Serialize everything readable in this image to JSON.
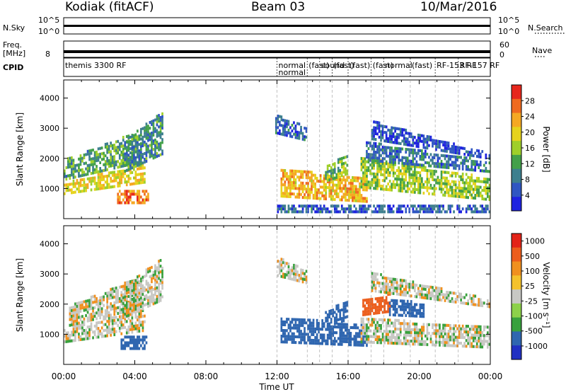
{
  "header": {
    "station": "Kodiak (fitACF)",
    "beam": "Beam 03",
    "date": "10/Mar/2016"
  },
  "strips": {
    "nsky_label": "N.Sky",
    "nsearch_label": "N.Search",
    "freq_label_1": "Freq.",
    "freq_label_2": "[MHz]",
    "nave_label": "Nave",
    "cpid_label": "CPID",
    "nsky_ticks": [
      "10^5",
      "10^0"
    ],
    "nsearch_ticks": [
      "10^5",
      "10^0"
    ],
    "freq_ticks": [
      "8"
    ],
    "nave_ticks": [
      "60",
      "0"
    ],
    "cpid_segments": [
      {
        "start": 0.0,
        "label": "themis 3300 RF"
      },
      {
        "start": 12.0,
        "label": "normal"
      },
      {
        "start": 13.7,
        "label": "(fast)"
      },
      {
        "start": 14.4,
        "label": "sound"
      },
      {
        "start": 15.1,
        "label": "(fast)"
      },
      {
        "start": 16.0,
        "label": "(fast)"
      },
      {
        "start": 17.3,
        "label": "(fast)"
      },
      {
        "start": 18.0,
        "label": "normal"
      },
      {
        "start": 19.5,
        "label": "(fast)"
      },
      {
        "start": 20.9,
        "label": "RF-153 RF"
      },
      {
        "start": 22.2,
        "label": "RF-157 RF"
      }
    ],
    "cpid_second_row": [
      "normal"
    ]
  },
  "colors": {
    "power": [
      "#1e22e0",
      "#2f56c2",
      "#3d7f8e",
      "#43a04a",
      "#9fcf2a",
      "#e6d31d",
      "#f5a823",
      "#ef6a1f",
      "#e7271d"
    ],
    "velocity": [
      "#2130c2",
      "#2f66b0",
      "#38a13d",
      "#8dd14a",
      "#c8c8c4",
      "#f4c22c",
      "#f0901f",
      "#ec5d1c",
      "#e32318"
    ]
  },
  "chart_data": [
    {
      "type": "heatmap",
      "panel": "power",
      "ylabel": "Slant Range [km]",
      "xlabel": "",
      "xlim": [
        0,
        24
      ],
      "ylim": [
        0,
        4600
      ],
      "yticks": [
        "1000",
        "2000",
        "3000",
        "4000"
      ],
      "colorbar": {
        "label": "Power [dB]",
        "ticks": [
          "28",
          "24",
          "20",
          "16",
          "12",
          "8",
          "4"
        ],
        "range": [
          0,
          32
        ]
      },
      "bands": [
        {
          "t0": 0.0,
          "t1": 4.6,
          "r0": 780,
          "r1": 1150,
          "r1end": 1800,
          "value": 20
        },
        {
          "t0": 0.0,
          "t1": 4.4,
          "r0": 1250,
          "r1": 1900,
          "r1end": 2900,
          "value": 12
        },
        {
          "t0": 3.3,
          "t1": 5.5,
          "r0": 1500,
          "r1": 2500,
          "r1end": 3500,
          "value": 10
        },
        {
          "t0": 3.0,
          "t1": 4.7,
          "r0": 480,
          "r1": 900,
          "r1end": 900,
          "value": 26
        },
        {
          "t0": 11.9,
          "t1": 13.6,
          "r0": 2800,
          "r1": 3400,
          "r1end": 3000,
          "value": 6
        },
        {
          "t0": 12.2,
          "t1": 17.1,
          "r0": 700,
          "r1": 1600,
          "r1end": 1300,
          "value": 22
        },
        {
          "t0": 14.7,
          "t1": 15.9,
          "r0": 1200,
          "r1": 1700,
          "r1end": 2100,
          "value": 14
        },
        {
          "t0": 16.7,
          "t1": 24.0,
          "r0": 1000,
          "r1": 2000,
          "r1end": 1300,
          "value": 16
        },
        {
          "t0": 17.0,
          "t1": 24.0,
          "r0": 1900,
          "r1": 2500,
          "r1end": 1850,
          "value": 8
        },
        {
          "t0": 17.3,
          "t1": 24.0,
          "r0": 2600,
          "r1": 3200,
          "r1end": 2100,
          "value": 5
        },
        {
          "t0": 12.0,
          "t1": 24.0,
          "r0": 180,
          "r1": 420,
          "r1end": 420,
          "value": 6
        }
      ]
    },
    {
      "type": "heatmap",
      "panel": "velocity",
      "ylabel": "Slant Range [km]",
      "xlabel": "Time UT",
      "xlim": [
        0,
        24
      ],
      "ylim": [
        0,
        4600
      ],
      "yticks": [
        "1000",
        "2000",
        "3000",
        "4000"
      ],
      "xticks": [
        "00:00",
        "04:00",
        "08:00",
        "12:00",
        "16:00",
        "20:00",
        "00:00"
      ],
      "colorbar": {
        "label": "Velocity [m s⁻¹]",
        "ticks": [
          "1000",
          "500",
          "100",
          "25",
          "-25",
          "-100",
          "-500",
          "-1000"
        ],
        "range": [
          -1000,
          1000
        ]
      },
      "bands": [
        {
          "t0": 0.0,
          "t1": 4.6,
          "r0": 700,
          "r1": 1150,
          "r1end": 1800,
          "value": 0
        },
        {
          "t0": 0.3,
          "t1": 4.4,
          "r0": 1250,
          "r1": 1900,
          "r1end": 2900,
          "value": 0
        },
        {
          "t0": 3.3,
          "t1": 5.5,
          "r0": 1500,
          "r1": 2500,
          "r1end": 3500,
          "value": 0
        },
        {
          "t0": 3.2,
          "t1": 4.6,
          "r0": 480,
          "r1": 900,
          "r1end": 900,
          "value": -300
        },
        {
          "t0": 12.0,
          "t1": 13.6,
          "r0": 2900,
          "r1": 3500,
          "r1end": 3100,
          "value": 0
        },
        {
          "t0": 12.2,
          "t1": 17.1,
          "r0": 700,
          "r1": 1500,
          "r1end": 1300,
          "value": -150
        },
        {
          "t0": 14.7,
          "t1": 15.9,
          "r0": 1200,
          "r1": 1700,
          "r1end": 2100,
          "value": -300
        },
        {
          "t0": 16.8,
          "t1": 18.4,
          "r0": 1600,
          "r1": 2100,
          "r1end": 2300,
          "value": 200
        },
        {
          "t0": 18.3,
          "t1": 20.3,
          "r0": 1600,
          "r1": 2100,
          "r1end": 2000,
          "value": -150
        },
        {
          "t0": 16.7,
          "t1": 24.0,
          "r0": 700,
          "r1": 1500,
          "r1end": 1200,
          "value": 0
        },
        {
          "t0": 17.3,
          "t1": 24.0,
          "r0": 2400,
          "r1": 3000,
          "r1end": 2100,
          "value": 0
        }
      ]
    }
  ]
}
